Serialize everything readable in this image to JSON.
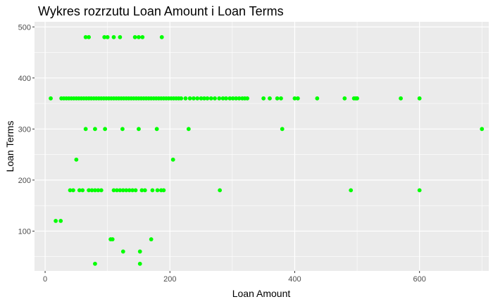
{
  "chart_data": {
    "type": "scatter",
    "title": "Wykres rozrzutu Loan Amount i Loan Terms",
    "xlabel": "Loan Amount",
    "ylabel": "Loan Terms",
    "xlim": [
      -17,
      711
    ],
    "ylim": [
      22,
      510
    ],
    "x_ticks": [
      0,
      200,
      400,
      600
    ],
    "y_ticks": [
      100,
      200,
      300,
      400,
      500
    ],
    "grid": true,
    "point_color": "#00ff00",
    "panel_color": "#ebebeb",
    "grid_color": "#ffffff",
    "points": [
      [
        9,
        360
      ],
      [
        26,
        360
      ],
      [
        30,
        360
      ],
      [
        34,
        360
      ],
      [
        38,
        360
      ],
      [
        42,
        360
      ],
      [
        46,
        360
      ],
      [
        50,
        360
      ],
      [
        54,
        360
      ],
      [
        58,
        360
      ],
      [
        62,
        360
      ],
      [
        66,
        360
      ],
      [
        70,
        360
      ],
      [
        74,
        360
      ],
      [
        78,
        360
      ],
      [
        82,
        360
      ],
      [
        86,
        360
      ],
      [
        90,
        360
      ],
      [
        94,
        360
      ],
      [
        98,
        360
      ],
      [
        102,
        360
      ],
      [
        106,
        360
      ],
      [
        110,
        360
      ],
      [
        114,
        360
      ],
      [
        118,
        360
      ],
      [
        122,
        360
      ],
      [
        126,
        360
      ],
      [
        130,
        360
      ],
      [
        134,
        360
      ],
      [
        138,
        360
      ],
      [
        142,
        360
      ],
      [
        146,
        360
      ],
      [
        150,
        360
      ],
      [
        154,
        360
      ],
      [
        158,
        360
      ],
      [
        162,
        360
      ],
      [
        166,
        360
      ],
      [
        170,
        360
      ],
      [
        174,
        360
      ],
      [
        178,
        360
      ],
      [
        182,
        360
      ],
      [
        186,
        360
      ],
      [
        190,
        360
      ],
      [
        194,
        360
      ],
      [
        198,
        360
      ],
      [
        202,
        360
      ],
      [
        206,
        360
      ],
      [
        210,
        360
      ],
      [
        214,
        360
      ],
      [
        218,
        360
      ],
      [
        225,
        360
      ],
      [
        232,
        360
      ],
      [
        238,
        360
      ],
      [
        244,
        360
      ],
      [
        250,
        360
      ],
      [
        255,
        360
      ],
      [
        260,
        360
      ],
      [
        266,
        360
      ],
      [
        272,
        360
      ],
      [
        279,
        360
      ],
      [
        285,
        360
      ],
      [
        290,
        360
      ],
      [
        296,
        360
      ],
      [
        301,
        360
      ],
      [
        306,
        360
      ],
      [
        311,
        360
      ],
      [
        316,
        360
      ],
      [
        320,
        360
      ],
      [
        324,
        360
      ],
      [
        350,
        360
      ],
      [
        360,
        360
      ],
      [
        372,
        360
      ],
      [
        378,
        360
      ],
      [
        400,
        360
      ],
      [
        405,
        360
      ],
      [
        436,
        360
      ],
      [
        480,
        360
      ],
      [
        495,
        360
      ],
      [
        498,
        360
      ],
      [
        500,
        360
      ],
      [
        570,
        360
      ],
      [
        600,
        360
      ],
      [
        65,
        480
      ],
      [
        70,
        480
      ],
      [
        95,
        480
      ],
      [
        100,
        480
      ],
      [
        110,
        480
      ],
      [
        120,
        480
      ],
      [
        144,
        480
      ],
      [
        150,
        480
      ],
      [
        156,
        480
      ],
      [
        187,
        480
      ],
      [
        65,
        300
      ],
      [
        80,
        300
      ],
      [
        96,
        300
      ],
      [
        124,
        300
      ],
      [
        150,
        300
      ],
      [
        179,
        300
      ],
      [
        230,
        300
      ],
      [
        380,
        300
      ],
      [
        700,
        300
      ],
      [
        50,
        240
      ],
      [
        205,
        240
      ],
      [
        40,
        180
      ],
      [
        45,
        180
      ],
      [
        55,
        180
      ],
      [
        60,
        180
      ],
      [
        70,
        180
      ],
      [
        75,
        180
      ],
      [
        80,
        180
      ],
      [
        85,
        180
      ],
      [
        90,
        180
      ],
      [
        110,
        180
      ],
      [
        115,
        180
      ],
      [
        120,
        180
      ],
      [
        125,
        180
      ],
      [
        130,
        180
      ],
      [
        135,
        180
      ],
      [
        140,
        180
      ],
      [
        145,
        180
      ],
      [
        155,
        180
      ],
      [
        160,
        180
      ],
      [
        172,
        180
      ],
      [
        180,
        180
      ],
      [
        186,
        180
      ],
      [
        190,
        180
      ],
      [
        280,
        180
      ],
      [
        490,
        180
      ],
      [
        600,
        180
      ],
      [
        17,
        120
      ],
      [
        25,
        120
      ],
      [
        105,
        84
      ],
      [
        108,
        84
      ],
      [
        170,
        84
      ],
      [
        125,
        60
      ],
      [
        152,
        60
      ],
      [
        80,
        36
      ],
      [
        152,
        36
      ]
    ]
  }
}
